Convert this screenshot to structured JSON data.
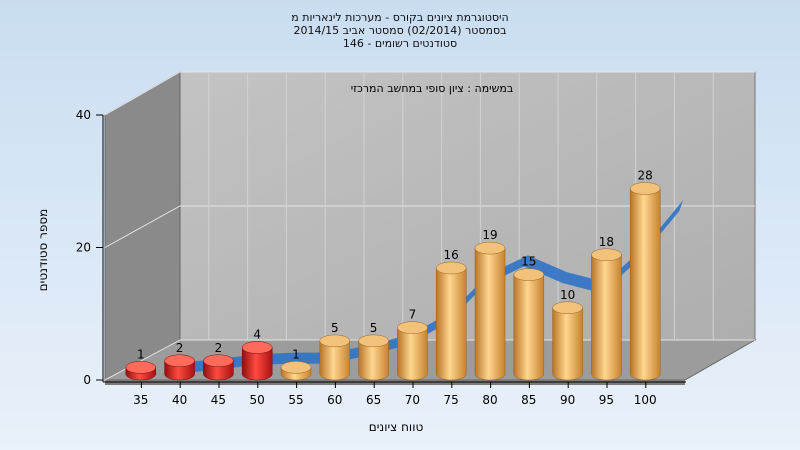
{
  "title_lines": [
    "היסטוגרמת ציונים בקורס - מערכות לינאריות מ",
    "בסמסטר  (02/2014)  סמסטר אביב 2014/15",
    "סטודנטים רשומים - 146"
  ],
  "chart_data": {
    "type": "bar",
    "subtitle": "במשימה : ציון סופי במחשב המרכזי",
    "xlabel": "טווח ציונים",
    "ylabel": "מספר סטודנטים",
    "ylim": [
      0,
      40
    ],
    "yticks": [
      0,
      20,
      40
    ],
    "grid": true,
    "categories": [
      "35",
      "40",
      "45",
      "50",
      "55",
      "60",
      "65",
      "70",
      "75",
      "80",
      "85",
      "90",
      "95",
      "100"
    ],
    "values": [
      1,
      2,
      2,
      4,
      1,
      5,
      5,
      7,
      16,
      19,
      15,
      10,
      18,
      28
    ],
    "bar_colors": [
      "#d0211e",
      "#d0211e",
      "#d0211e",
      "#d0211e",
      "#e6a04a",
      "#e6a04a",
      "#e6a04a",
      "#e6a04a",
      "#e6a04a",
      "#e6a04a",
      "#e6a04a",
      "#e6a04a",
      "#e6a04a",
      "#e6a04a"
    ],
    "trend_color": "#2f73c8"
  }
}
